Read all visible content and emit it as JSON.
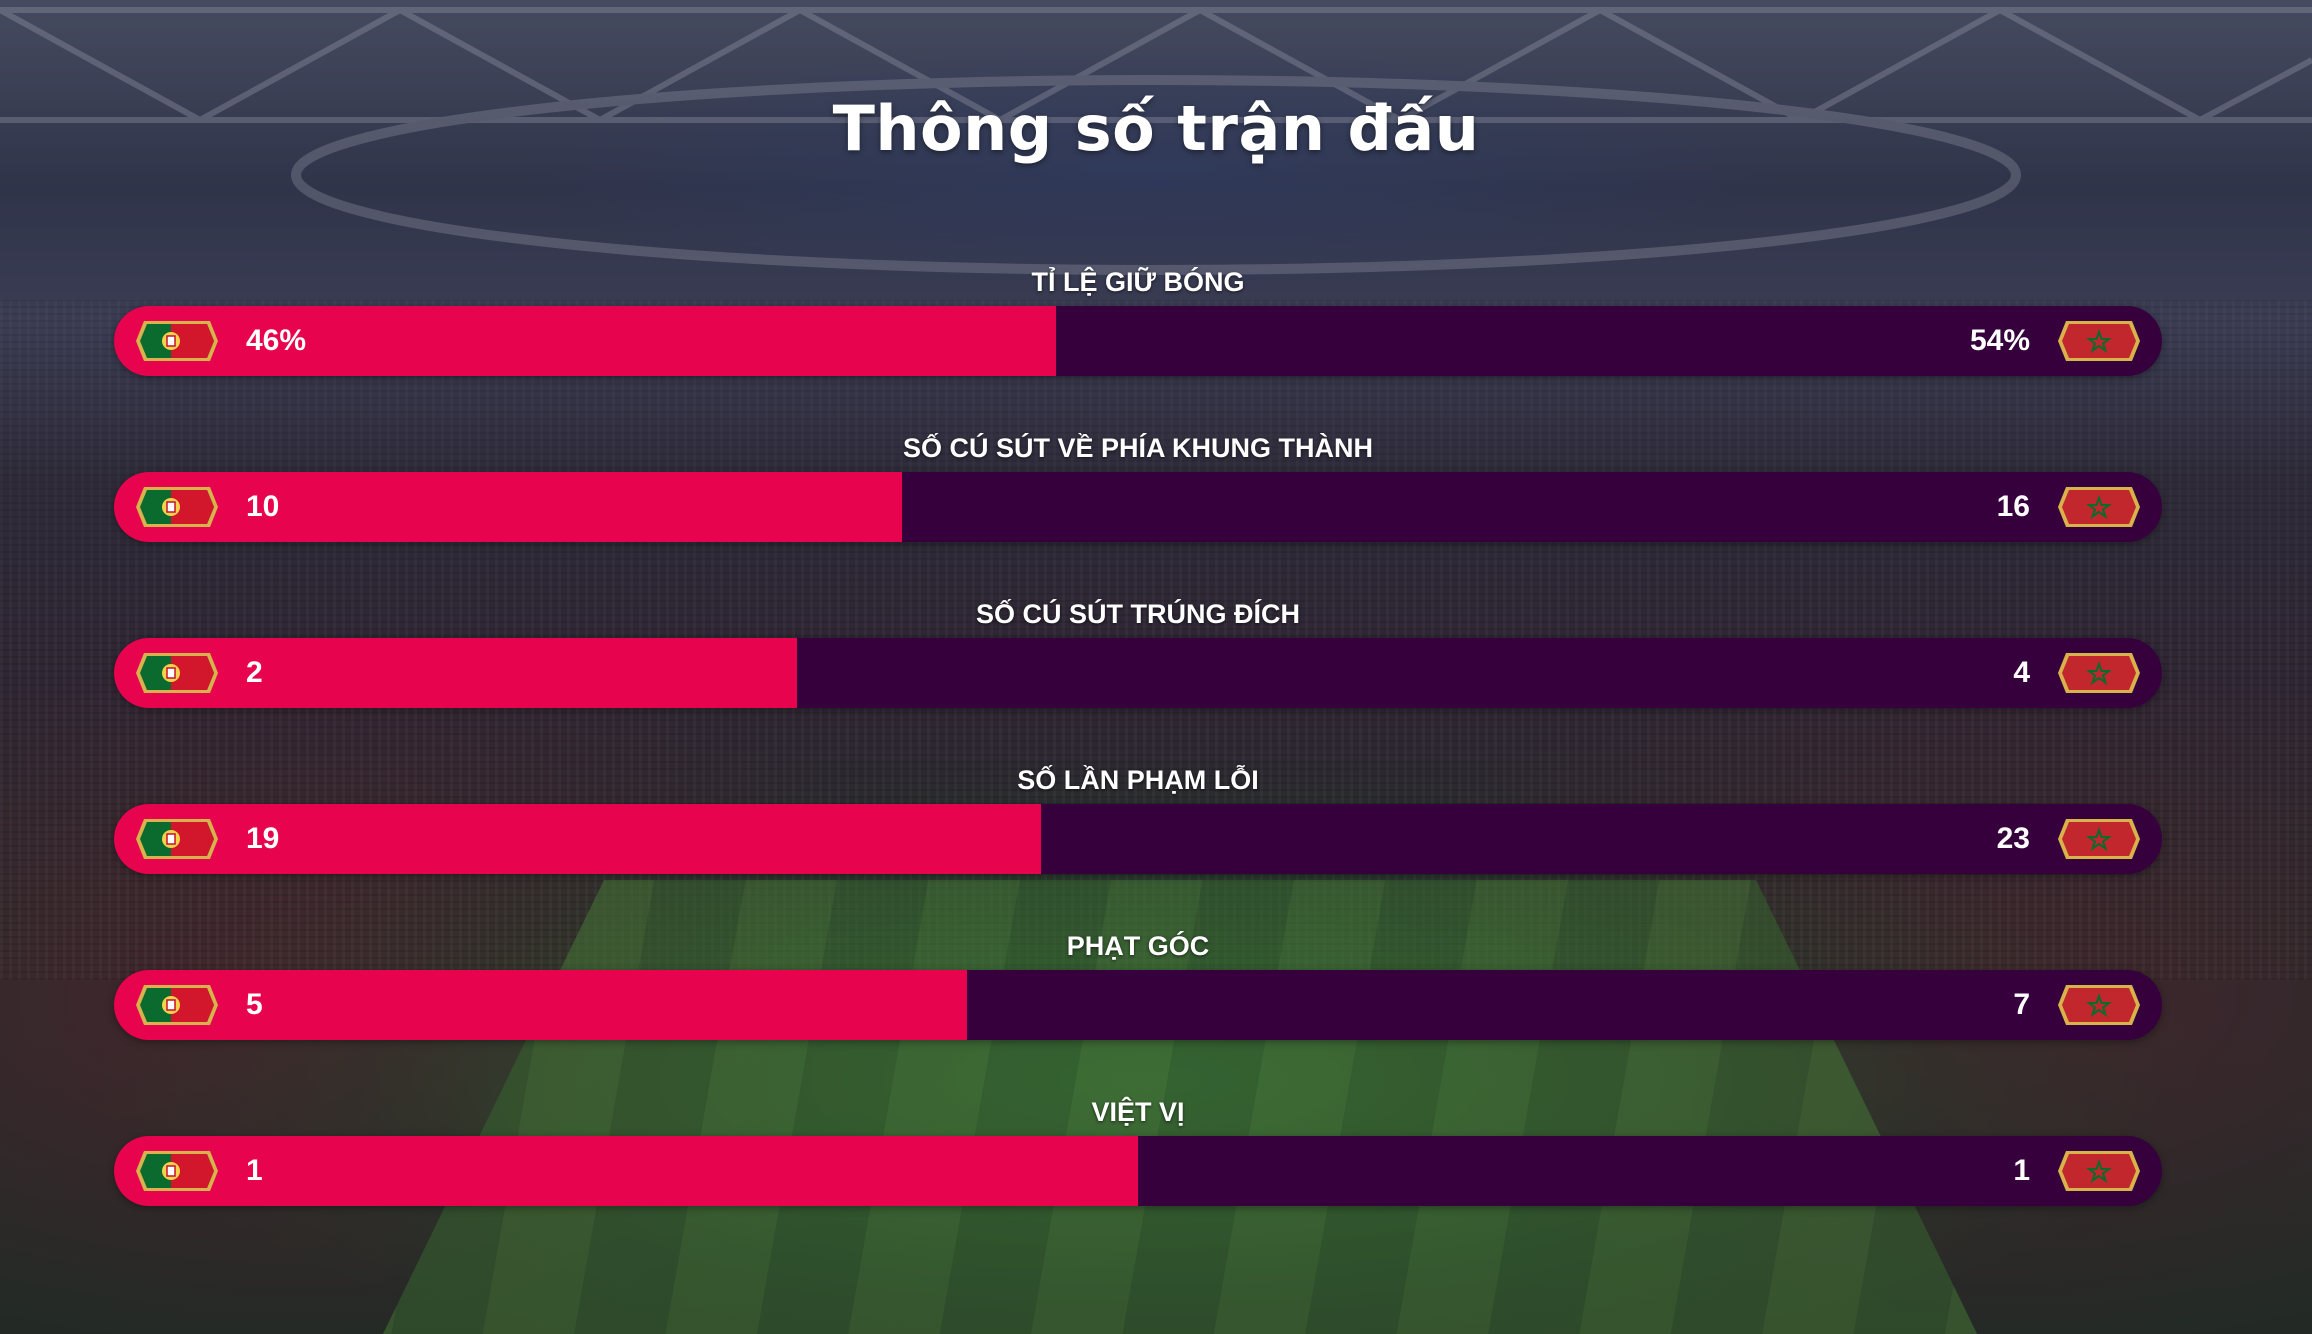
{
  "page": {
    "title": "Thông số trận đấu"
  },
  "teams": {
    "home": {
      "flag": "portugal-flag-icon",
      "color": "#e8034f"
    },
    "away": {
      "flag": "morocco-flag-icon",
      "color": "#36003d"
    }
  },
  "stats": [
    {
      "label": "TỈ LỆ GIỮ BÓNG",
      "home": "46%",
      "away": "54%",
      "home_share": 0.46
    },
    {
      "label": "SỐ CÚ SÚT VỀ PHÍA KHUNG THÀNH",
      "home": "10",
      "away": "16",
      "home_share": 0.3846
    },
    {
      "label": "SỐ CÚ SÚT TRÚNG ĐÍCH",
      "home": "2",
      "away": "4",
      "home_share": 0.3333
    },
    {
      "label": "SỐ LẦN PHẠM LỖI",
      "home": "19",
      "away": "23",
      "home_share": 0.4524
    },
    {
      "label": "PHẠT GÓC",
      "home": "5",
      "away": "7",
      "home_share": 0.4167
    },
    {
      "label": "VIỆT VỊ",
      "home": "1",
      "away": "1",
      "home_share": 0.5
    }
  ]
}
